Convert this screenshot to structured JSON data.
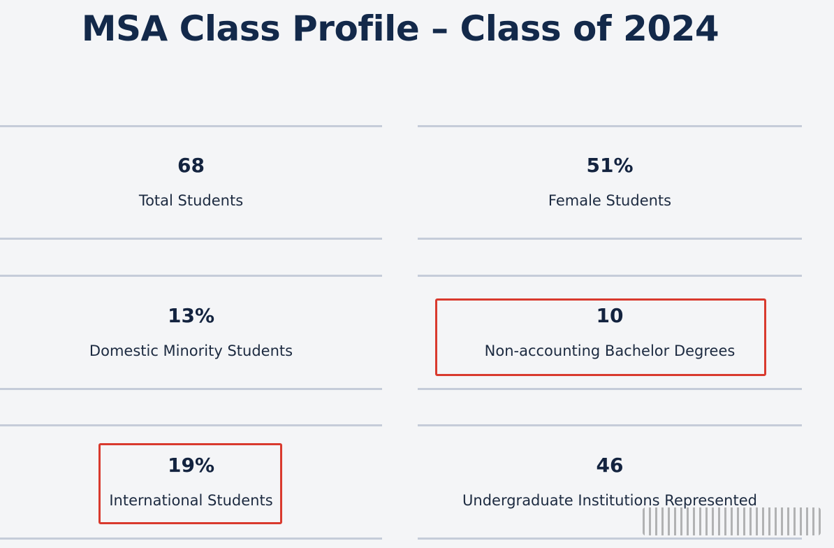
{
  "title": "MSA Class Profile – Class of 2024",
  "stats": [
    {
      "value": "68",
      "label": "Total Students"
    },
    {
      "value": "51%",
      "label": "Female Students"
    },
    {
      "value": "13%",
      "label": "Domestic Minority Students"
    },
    {
      "value": "10",
      "label": "Non-accounting Bachelor Degrees"
    },
    {
      "value": "19%",
      "label": "International Students"
    },
    {
      "value": "46",
      "label": "Undergraduate Institutions Represented"
    }
  ],
  "colors": {
    "background": "#f4f5f7",
    "title": "#13294a",
    "divider": "#c5ccd9",
    "highlight": "#d93a2e"
  }
}
